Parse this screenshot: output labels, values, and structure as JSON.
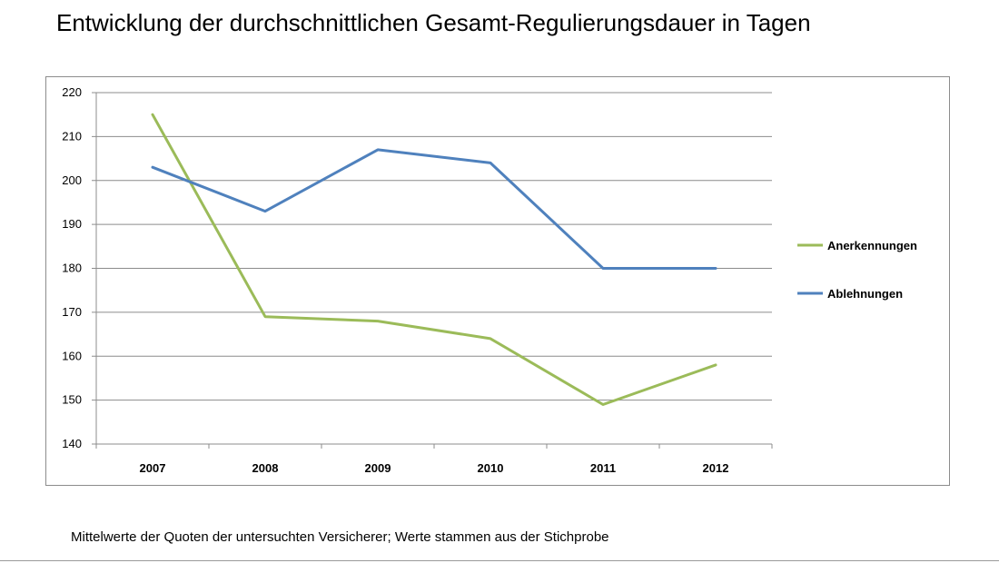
{
  "title": "Entwicklung der durchschnittlichen Gesamt-Regulierungsdauer in Tagen",
  "footnote": "Mittelwerte der Quoten der untersuchten Versicherer; Werte stammen aus der Stichprobe",
  "chart_data": {
    "type": "line",
    "categories": [
      "2007",
      "2008",
      "2009",
      "2010",
      "2011",
      "2012"
    ],
    "series": [
      {
        "name": "Anerkennungen",
        "color": "#9BBB59",
        "values": [
          215,
          169,
          168,
          164,
          149,
          158
        ]
      },
      {
        "name": "Ablehnungen",
        "color": "#4F81BD",
        "values": [
          203,
          193,
          207,
          204,
          180,
          180
        ]
      }
    ],
    "ylim": [
      140,
      220
    ],
    "yticks": [
      "140",
      "150",
      "160",
      "170",
      "180",
      "190",
      "200",
      "210",
      "220"
    ],
    "grid": true,
    "legend_position": "right"
  }
}
